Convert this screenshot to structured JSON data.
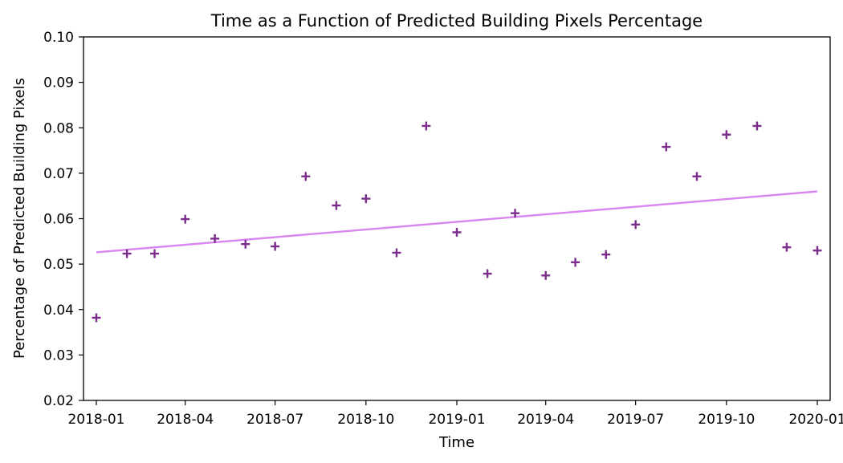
{
  "chart_data": {
    "type": "scatter",
    "title": "Time as a Function of Predicted Building Pixels Percentage",
    "xlabel": "Time",
    "ylabel": "Percentage of Predicted Building Pixels",
    "x_ticks": [
      "2018-01",
      "2018-04",
      "2018-07",
      "2018-10",
      "2019-01",
      "2019-04",
      "2019-07",
      "2019-10",
      "2020-01"
    ],
    "y_ticks": [
      "0.02",
      "0.03",
      "0.04",
      "0.05",
      "0.06",
      "0.07",
      "0.08",
      "0.09",
      "0.10"
    ],
    "xlim": [
      "2017-12-19",
      "2020-01-14"
    ],
    "ylim": [
      0.02,
      0.1
    ],
    "grid": false,
    "marker": "+",
    "series": [
      {
        "type": "scatter",
        "color": "#7b2d8b",
        "points": [
          {
            "x": "2018-01-01",
            "y": 0.0382
          },
          {
            "x": "2018-02-01",
            "y": 0.0523
          },
          {
            "x": "2018-03-01",
            "y": 0.0523
          },
          {
            "x": "2018-04-01",
            "y": 0.0599
          },
          {
            "x": "2018-05-01",
            "y": 0.0556
          },
          {
            "x": "2018-06-01",
            "y": 0.0544
          },
          {
            "x": "2018-07-01",
            "y": 0.0539
          },
          {
            "x": "2018-08-01",
            "y": 0.0693
          },
          {
            "x": "2018-09-01",
            "y": 0.0629
          },
          {
            "x": "2018-10-01",
            "y": 0.0644
          },
          {
            "x": "2018-11-01",
            "y": 0.0525
          },
          {
            "x": "2018-12-01",
            "y": 0.0804
          },
          {
            "x": "2019-01-01",
            "y": 0.057
          },
          {
            "x": "2019-02-01",
            "y": 0.0479
          },
          {
            "x": "2019-03-01",
            "y": 0.0612
          },
          {
            "x": "2019-04-01",
            "y": 0.0475
          },
          {
            "x": "2019-05-01",
            "y": 0.0504
          },
          {
            "x": "2019-06-01",
            "y": 0.0521
          },
          {
            "x": "2019-07-01",
            "y": 0.0587
          },
          {
            "x": "2019-08-01",
            "y": 0.0758
          },
          {
            "x": "2019-09-01",
            "y": 0.0693
          },
          {
            "x": "2019-10-01",
            "y": 0.0785
          },
          {
            "x": "2019-11-01",
            "y": 0.0804
          },
          {
            "x": "2019-12-01",
            "y": 0.0537
          },
          {
            "x": "2020-01-01",
            "y": 0.053
          }
        ]
      },
      {
        "type": "line",
        "color": "#da86f0",
        "points": [
          {
            "x": "2018-01-01",
            "y": 0.0526
          },
          {
            "x": "2020-01-01",
            "y": 0.066
          }
        ]
      }
    ]
  }
}
